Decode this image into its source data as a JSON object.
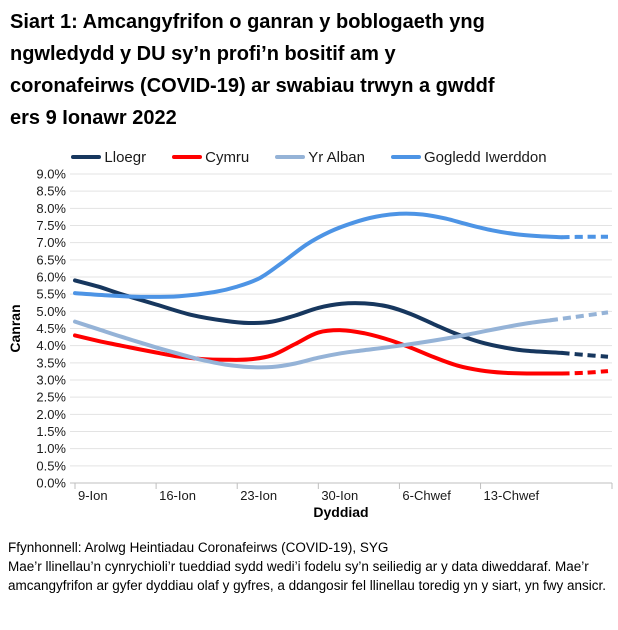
{
  "title_lines": [
    "Siart 1: Amcangyfrifon o ganran y boblogaeth yng",
    "ngwledydd y DU sy’n profi’n bositif am y",
    "coronafeirws (COVID-19) ar swabiau trwyn a gwddf",
    "ers 9 Ionawr 2022"
  ],
  "footer": {
    "source": "Ffynhonnell: Arolwg Heintiadau Coronafeirws (COVID-19), SYG",
    "note": "Mae’r llinellau’n cynrychioli’r tueddiad sydd wedi’i fodelu sy’n seiliedig ar y data diweddaraf. Mae’r amcangyfrifon ar gyfer dyddiau olaf y gyfres, a ddangosir fel llinellau toredig yn y siart, yn fwy ansicr."
  },
  "chart_data": {
    "type": "line",
    "title": "Siart 1: Amcangyfrifon o ganran y boblogaeth yng ngwledydd y DU sy’n profi’n bositif am y coronafeirws (COVID-19) ar swabiau trwyn a gwddf ers 9 Ionawr 2022",
    "xlabel": "Dyddiad",
    "ylabel": "Canran",
    "ylim": [
      0,
      9
    ],
    "ytick_step": 0.5,
    "ytick_labels": [
      "0.0%",
      "0.5%",
      "1.0%",
      "1.5%",
      "2.0%",
      "2.5%",
      "3.0%",
      "3.5%",
      "4.0%",
      "4.5%",
      "5.0%",
      "5.5%",
      "6.0%",
      "6.5%",
      "7.0%",
      "7.5%",
      "8.0%",
      "8.5%",
      "9.0%"
    ],
    "x_unit": "diwrnodau ers 9 Ionawr 2022",
    "x_domain_days": 46,
    "xticks": [
      {
        "day": 0,
        "label": "9-Ion"
      },
      {
        "day": 7,
        "label": "16-Ion"
      },
      {
        "day": 14,
        "label": "23-Ion"
      },
      {
        "day": 21,
        "label": "30-Ion"
      },
      {
        "day": 28,
        "label": "6-Chwef"
      },
      {
        "day": 35,
        "label": "13-Chwef"
      }
    ],
    "grid": "horizontal",
    "legend_position": "top",
    "dashed_segment_meaning": "llinellau toredig = amcangyfrifon mwy ansicr ar gyfer dyddiau olaf y gyfres",
    "series": [
      {
        "name": "Lloegr",
        "color": "#17375E",
        "solid": [
          [
            0,
            5.9
          ],
          [
            2,
            5.72
          ],
          [
            4,
            5.5
          ],
          [
            7,
            5.2
          ],
          [
            10,
            4.9
          ],
          [
            13,
            4.72
          ],
          [
            15,
            4.66
          ],
          [
            17,
            4.7
          ],
          [
            19,
            4.88
          ],
          [
            21,
            5.1
          ],
          [
            23,
            5.22
          ],
          [
            25,
            5.23
          ],
          [
            27,
            5.14
          ],
          [
            29,
            4.92
          ],
          [
            31,
            4.62
          ],
          [
            33,
            4.33
          ],
          [
            35,
            4.1
          ],
          [
            37,
            3.95
          ],
          [
            39,
            3.85
          ],
          [
            42,
            3.79
          ]
        ],
        "dashed": [
          [
            42,
            3.79
          ],
          [
            44,
            3.73
          ],
          [
            46,
            3.68
          ]
        ]
      },
      {
        "name": "Cymru",
        "color": "#FF0000",
        "solid": [
          [
            0,
            4.3
          ],
          [
            2,
            4.14
          ],
          [
            4,
            4.0
          ],
          [
            7,
            3.8
          ],
          [
            9,
            3.68
          ],
          [
            11,
            3.61
          ],
          [
            13,
            3.59
          ],
          [
            15,
            3.6
          ],
          [
            17,
            3.72
          ],
          [
            19,
            4.05
          ],
          [
            21,
            4.38
          ],
          [
            23,
            4.45
          ],
          [
            25,
            4.36
          ],
          [
            27,
            4.18
          ],
          [
            29,
            3.94
          ],
          [
            31,
            3.66
          ],
          [
            33,
            3.42
          ],
          [
            35,
            3.28
          ],
          [
            37,
            3.21
          ],
          [
            39,
            3.19
          ],
          [
            42,
            3.19
          ]
        ],
        "dashed": [
          [
            42,
            3.19
          ],
          [
            44,
            3.21
          ],
          [
            46,
            3.26
          ]
        ]
      },
      {
        "name": "Yr Alban",
        "color": "#95B3D7",
        "solid": [
          [
            0,
            4.7
          ],
          [
            2,
            4.48
          ],
          [
            4,
            4.26
          ],
          [
            7,
            3.95
          ],
          [
            9,
            3.76
          ],
          [
            11,
            3.58
          ],
          [
            13,
            3.45
          ],
          [
            15,
            3.38
          ],
          [
            17,
            3.38
          ],
          [
            19,
            3.48
          ],
          [
            21,
            3.65
          ],
          [
            23,
            3.78
          ],
          [
            25,
            3.87
          ],
          [
            28,
            4.0
          ],
          [
            31,
            4.15
          ],
          [
            34,
            4.33
          ],
          [
            37,
            4.53
          ],
          [
            39,
            4.65
          ],
          [
            41,
            4.74
          ]
        ],
        "dashed": [
          [
            41,
            4.74
          ],
          [
            43,
            4.83
          ],
          [
            46,
            4.97
          ]
        ]
      },
      {
        "name": "Gogledd Iwerddon",
        "color": "#4D94E5",
        "solid": [
          [
            0,
            5.53
          ],
          [
            3,
            5.46
          ],
          [
            6,
            5.42
          ],
          [
            9,
            5.44
          ],
          [
            12,
            5.56
          ],
          [
            14,
            5.72
          ],
          [
            16,
            5.98
          ],
          [
            18,
            6.45
          ],
          [
            20,
            6.95
          ],
          [
            22,
            7.32
          ],
          [
            24,
            7.58
          ],
          [
            26,
            7.76
          ],
          [
            28,
            7.84
          ],
          [
            30,
            7.82
          ],
          [
            32,
            7.7
          ],
          [
            34,
            7.52
          ],
          [
            36,
            7.36
          ],
          [
            38,
            7.25
          ],
          [
            40,
            7.19
          ],
          [
            42,
            7.16
          ]
        ],
        "dashed": [
          [
            42,
            7.16
          ],
          [
            44,
            7.17
          ],
          [
            46,
            7.17
          ]
        ]
      }
    ]
  }
}
